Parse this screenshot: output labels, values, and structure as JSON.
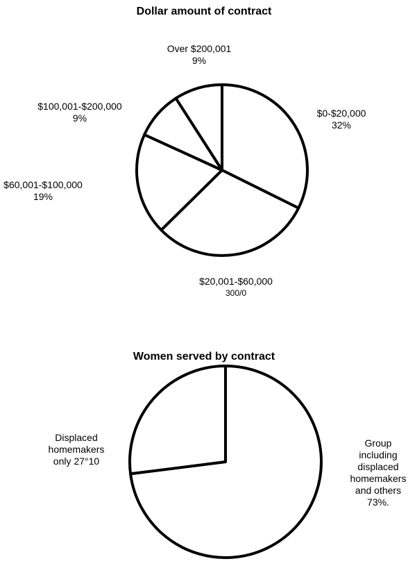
{
  "charts": [
    {
      "type": "pie",
      "title": "Dollar amount of contract",
      "categories": [
        "$0-$20,000",
        "$20,001-$60,000",
        "$60,001-$100,000",
        "$100,001-$200,000",
        "Over $200,001"
      ],
      "values": [
        32,
        30,
        19,
        9,
        9
      ],
      "value_labels": [
        "32%",
        "300/0",
        "19%",
        "9%",
        "9%"
      ],
      "color": "#ffffff",
      "edge_color": "#000000"
    },
    {
      "type": "pie",
      "title": "Women served by contract",
      "categories": [
        "Group including displaced homemakers and others",
        "Displaced homemakers only"
      ],
      "values": [
        73,
        27
      ],
      "value_labels": [
        "73%.",
        "27°10"
      ],
      "color": "#ffffff",
      "edge_color": "#000000"
    }
  ]
}
